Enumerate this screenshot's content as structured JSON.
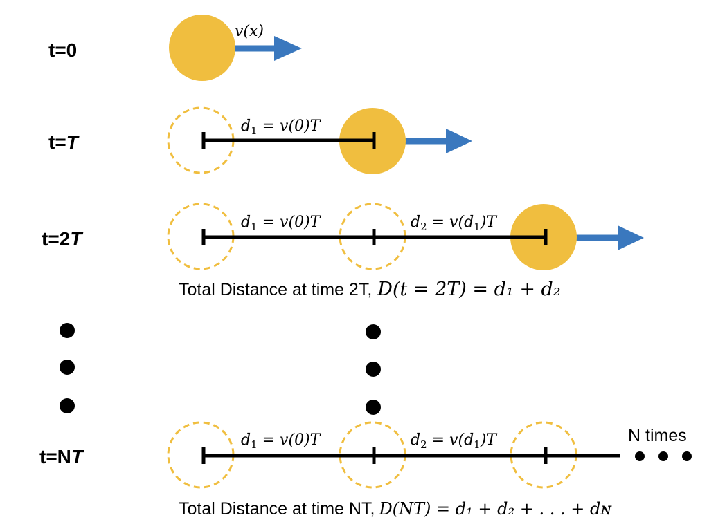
{
  "colors": {
    "ball": "#F0BE3F",
    "ball_outline": "#F0BE3F",
    "arrow": "#3A78BE",
    "line": "#000000",
    "dot": "#000000"
  },
  "rows": [
    {
      "label_prefix": "t=0",
      "label_italic": ""
    },
    {
      "label_prefix": "t=",
      "label_italic": "T"
    },
    {
      "label_prefix": "t=2",
      "label_italic": "T"
    },
    {
      "label_prefix": "t=N",
      "label_italic": "T"
    }
  ],
  "velocity_label": "v(x)",
  "segment_labels": {
    "d1": {
      "main": "d",
      "sub": "1",
      "rhs": " = v(0)T"
    },
    "d2": {
      "main": "d",
      "sub": "2",
      "rhs_a": " = v(d",
      "rhs_sub": "1",
      "rhs_b": ")T"
    }
  },
  "total_2T": {
    "text": "Total Distance at time 2T,",
    "math": "D(t = 2T) = d₁ + d₂"
  },
  "total_NT": {
    "text": "Total Distance at time NT,",
    "math": "D(NT) = d₁ + d₂ + . . . + dɴ"
  },
  "n_times_label": "N times",
  "icons": [
    "filled-ball-icon",
    "dashed-ball-icon",
    "velocity-arrow-icon",
    "ellipsis-dot-icon"
  ]
}
